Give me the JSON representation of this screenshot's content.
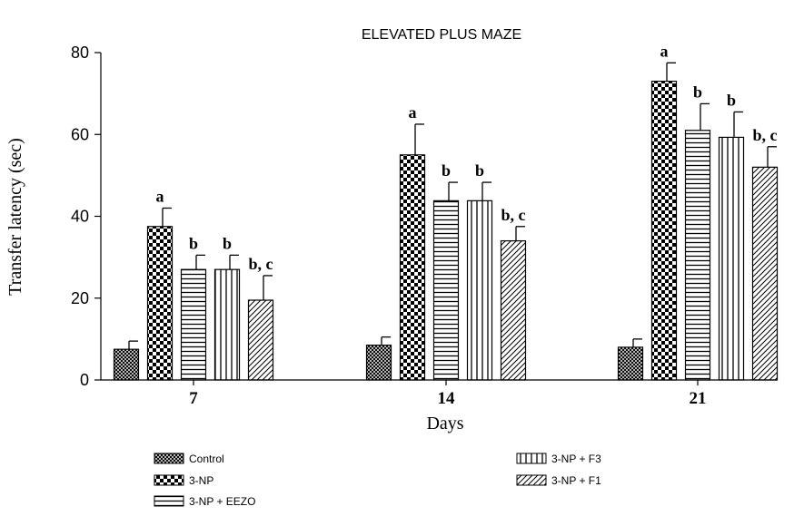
{
  "chart_data": {
    "type": "bar",
    "title": "ELEVATED PLUS MAZE",
    "xlabel": "Days",
    "ylabel": "Transfer latency (sec)",
    "categories": [
      "7",
      "14",
      "21"
    ],
    "ylim": [
      0,
      80
    ],
    "yticks": [
      "0",
      "20",
      "40",
      "60",
      "80"
    ],
    "grid": false,
    "legend_position": "bottom",
    "series": [
      {
        "name": "Control",
        "pattern": "cross-hatch",
        "values": [
          7.5,
          8.5,
          8
        ],
        "errors": [
          2,
          2,
          2
        ],
        "labels": [
          "",
          "",
          ""
        ]
      },
      {
        "name": "3-NP",
        "pattern": "checkerboard",
        "values": [
          37.5,
          55,
          73
        ],
        "errors": [
          4.5,
          7.5,
          4.5
        ],
        "labels": [
          "a",
          "a",
          "a"
        ]
      },
      {
        "name": "3-NP + EEZO",
        "pattern": "horizontal-lines",
        "values": [
          27,
          43.8,
          61
        ],
        "errors": [
          3.5,
          4.5,
          6.5
        ],
        "labels": [
          "b",
          "b",
          "b"
        ]
      },
      {
        "name": "3-NP + F3",
        "pattern": "vertical-lines",
        "values": [
          27,
          43.8,
          59.3
        ],
        "errors": [
          3.5,
          4.5,
          6.2
        ],
        "labels": [
          "b",
          "b",
          "b"
        ]
      },
      {
        "name": "3-NP + F1",
        "pattern": "diagonal-lines",
        "values": [
          19.5,
          34,
          52
        ],
        "errors": [
          6,
          3.5,
          5
        ],
        "labels": [
          "b, c",
          "b, c",
          "b, c"
        ]
      }
    ]
  }
}
